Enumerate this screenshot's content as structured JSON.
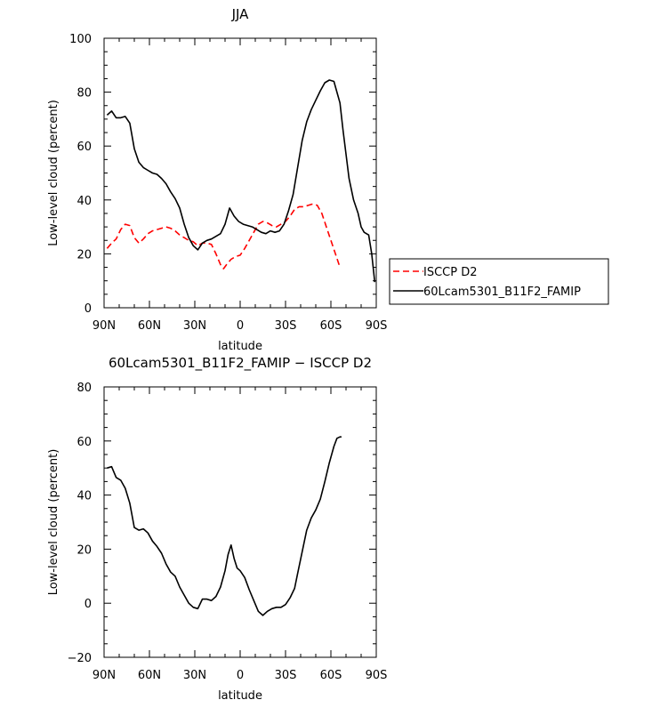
{
  "chart_data": [
    {
      "type": "line",
      "title": "JJA",
      "xlabel": "latitude",
      "ylabel": "Low-level cloud (percent)",
      "xlim": [
        -90,
        90
      ],
      "ylim": [
        0,
        100
      ],
      "x_ticks": [
        -90,
        -60,
        -30,
        0,
        30,
        60,
        90
      ],
      "x_tick_labels": [
        "90N",
        "60N",
        "30N",
        "0",
        "30S",
        "60S",
        "90S"
      ],
      "y_ticks": [
        0,
        20,
        40,
        60,
        80,
        100
      ],
      "y_tick_labels": [
        "0",
        "20",
        "40",
        "60",
        "80",
        "100"
      ],
      "legend_position": "right",
      "series": [
        {
          "name": "ISCCP D2",
          "color": "#ff0000",
          "dash": "dashed",
          "points": [
            [
              -88,
              22
            ],
            [
              -85,
              24
            ],
            [
              -82,
              25.5
            ],
            [
              -79,
              29
            ],
            [
              -76,
              31
            ],
            [
              -73,
              30.5
            ],
            [
              -70,
              26
            ],
            [
              -67,
              24
            ],
            [
              -64,
              25.5
            ],
            [
              -61,
              27.5
            ],
            [
              -58,
              28.5
            ],
            [
              -55,
              29
            ],
            [
              -52,
              29.5
            ],
            [
              -49,
              30
            ],
            [
              -46,
              29.5
            ],
            [
              -43,
              28.5
            ],
            [
              -40,
              27
            ],
            [
              -37,
              26
            ],
            [
              -34,
              25
            ],
            [
              -31,
              24.5
            ],
            [
              -28,
              23
            ],
            [
              -25,
              24
            ],
            [
              -22,
              24
            ],
            [
              -19,
              23.5
            ],
            [
              -16,
              20
            ],
            [
              -13,
              16
            ],
            [
              -11,
              14.5
            ],
            [
              -9,
              16
            ],
            [
              -6,
              18
            ],
            [
              -3,
              19
            ],
            [
              0,
              19.5
            ],
            [
              3,
              22
            ],
            [
              6,
              25
            ],
            [
              9,
              28
            ],
            [
              12,
              31
            ],
            [
              15,
              32
            ],
            [
              18,
              31.5
            ],
            [
              21,
              30.5
            ],
            [
              24,
              30
            ],
            [
              27,
              31
            ],
            [
              30,
              32
            ],
            [
              33,
              34
            ],
            [
              36,
              36.5
            ],
            [
              39,
              37.5
            ],
            [
              42,
              37.5
            ],
            [
              45,
              38
            ],
            [
              48,
              38.5
            ],
            [
              51,
              38
            ],
            [
              54,
              35
            ],
            [
              57,
              30
            ],
            [
              60,
              25
            ],
            [
              63,
              20
            ],
            [
              66,
              15
            ]
          ]
        },
        {
          "name": "60Lcam5301_B11F2_FAMIP",
          "color": "#000000",
          "dash": "solid",
          "points": [
            [
              -88,
              71.5
            ],
            [
              -85,
              73
            ],
            [
              -82,
              70.5
            ],
            [
              -79,
              70.5
            ],
            [
              -76,
              71
            ],
            [
              -73,
              68.5
            ],
            [
              -70,
              59
            ],
            [
              -67,
              54
            ],
            [
              -64,
              52
            ],
            [
              -61,
              51
            ],
            [
              -58,
              50
            ],
            [
              -55,
              49.5
            ],
            [
              -52,
              48
            ],
            [
              -49,
              46
            ],
            [
              -46,
              43
            ],
            [
              -43,
              40.5
            ],
            [
              -40,
              37
            ],
            [
              -37,
              31
            ],
            [
              -34,
              26
            ],
            [
              -31,
              23
            ],
            [
              -28,
              21.5
            ],
            [
              -25,
              24
            ],
            [
              -22,
              25
            ],
            [
              -19,
              25.5
            ],
            [
              -16,
              26.5
            ],
            [
              -13,
              27.5
            ],
            [
              -10,
              31
            ],
            [
              -7,
              37
            ],
            [
              -4,
              34
            ],
            [
              -1,
              32
            ],
            [
              2,
              31
            ],
            [
              5,
              30.5
            ],
            [
              8,
              30
            ],
            [
              11,
              29
            ],
            [
              14,
              28
            ],
            [
              17,
              27.5
            ],
            [
              20,
              28.5
            ],
            [
              23,
              28
            ],
            [
              26,
              28.5
            ],
            [
              29,
              31
            ],
            [
              32,
              36
            ],
            [
              35,
              42
            ],
            [
              38,
              52
            ],
            [
              41,
              62
            ],
            [
              44,
              69
            ],
            [
              47,
              73.5
            ],
            [
              50,
              77
            ],
            [
              53,
              80.5
            ],
            [
              56,
              83.5
            ],
            [
              59,
              84.5
            ],
            [
              62,
              84
            ],
            [
              64,
              80
            ],
            [
              66,
              76
            ],
            [
              68,
              66
            ],
            [
              70,
              57
            ],
            [
              72,
              48
            ],
            [
              75,
              40
            ],
            [
              78,
              35
            ],
            [
              80,
              30
            ],
            [
              82,
              28
            ],
            [
              85,
              27
            ],
            [
              87,
              20
            ],
            [
              89,
              9.5
            ]
          ]
        }
      ]
    },
    {
      "type": "line",
      "title": "60Lcam5301_B11F2_FAMIP − ISCCP D2",
      "xlabel": "latitude",
      "ylabel": "Low-level cloud (percent)",
      "xlim": [
        -90,
        90
      ],
      "ylim": [
        -20,
        80
      ],
      "x_ticks": [
        -90,
        -60,
        -30,
        0,
        30,
        60,
        90
      ],
      "x_tick_labels": [
        "90N",
        "60N",
        "30N",
        "0",
        "30S",
        "60S",
        "90S"
      ],
      "y_ticks": [
        -20,
        0,
        20,
        40,
        60,
        80
      ],
      "y_tick_labels": [
        "−20",
        "0",
        "20",
        "40",
        "60",
        "80"
      ],
      "series": [
        {
          "color": "#000000",
          "dash": "solid",
          "points": [
            [
              -88,
              50
            ],
            [
              -85,
              50.5
            ],
            [
              -82,
              46.5
            ],
            [
              -79,
              45.5
            ],
            [
              -76,
              42.5
            ],
            [
              -73,
              37
            ],
            [
              -70,
              28
            ],
            [
              -67,
              27
            ],
            [
              -64,
              27.5
            ],
            [
              -61,
              26
            ],
            [
              -58,
              23
            ],
            [
              -55,
              21
            ],
            [
              -52,
              18.5
            ],
            [
              -49,
              14.5
            ],
            [
              -46,
              11.5
            ],
            [
              -43,
              10
            ],
            [
              -40,
              6
            ],
            [
              -37,
              3
            ],
            [
              -34,
              0
            ],
            [
              -31,
              -1.5
            ],
            [
              -28,
              -2
            ],
            [
              -25,
              1.5
            ],
            [
              -22,
              1.5
            ],
            [
              -19,
              1
            ],
            [
              -16,
              2.5
            ],
            [
              -13,
              6
            ],
            [
              -10,
              12
            ],
            [
              -8,
              18
            ],
            [
              -6,
              21.5
            ],
            [
              -4,
              16.5
            ],
            [
              -2,
              13
            ],
            [
              0,
              12
            ],
            [
              3,
              9.5
            ],
            [
              6,
              5
            ],
            [
              9,
              1
            ],
            [
              12,
              -3
            ],
            [
              15,
              -4.5
            ],
            [
              18,
              -3
            ],
            [
              21,
              -2
            ],
            [
              24,
              -1.5
            ],
            [
              27,
              -1.5
            ],
            [
              30,
              -0.5
            ],
            [
              33,
              2
            ],
            [
              36,
              5.5
            ],
            [
              38,
              11
            ],
            [
              41,
              19
            ],
            [
              44,
              27
            ],
            [
              47,
              31.5
            ],
            [
              50,
              34.5
            ],
            [
              53,
              38.5
            ],
            [
              56,
              45
            ],
            [
              59,
              52
            ],
            [
              62,
              58
            ],
            [
              64,
              61
            ],
            [
              66,
              61.5
            ],
            [
              67,
              61.5
            ]
          ]
        }
      ]
    }
  ]
}
